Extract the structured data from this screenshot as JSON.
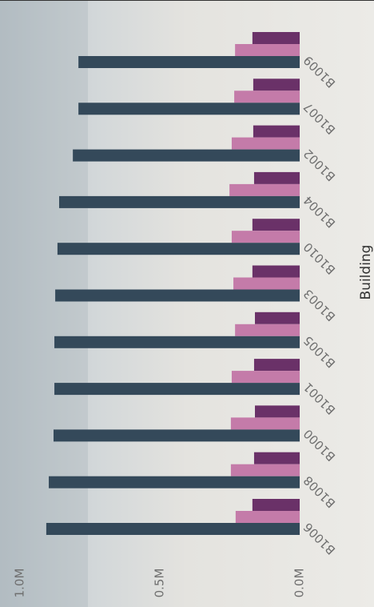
{
  "chart_data": {
    "type": "bar",
    "orientation": "horizontal",
    "x_label": "Building",
    "categories": [
      "B1006",
      "B1008",
      "B1000",
      "B1001",
      "B1005",
      "B1003",
      "B1010",
      "B1004",
      "B1002",
      "B1007",
      "B1009"
    ],
    "series": [
      {
        "color": "#6a3168",
        "values": [
          169000,
          163000,
          160000,
          163000,
          160000,
          169000,
          169000,
          163000,
          166000,
          166000,
          169000
        ]
      },
      {
        "color": "#c47ba9",
        "values": [
          229000,
          246000,
          246000,
          243000,
          231000,
          237000,
          243000,
          251000,
          243000,
          234000,
          231000
        ]
      },
      {
        "color": "#34495a",
        "values": [
          906000,
          897000,
          880000,
          877000,
          877000,
          874000,
          866000,
          860000,
          811000,
          791000,
          791000
        ]
      }
    ],
    "ylim": [
      0,
      1000000
    ],
    "yticks": [
      {
        "value": 0,
        "label": "0.0M"
      },
      {
        "value": 500000,
        "label": "0.5M"
      },
      {
        "value": 1000000,
        "label": "1.0M"
      }
    ]
  }
}
